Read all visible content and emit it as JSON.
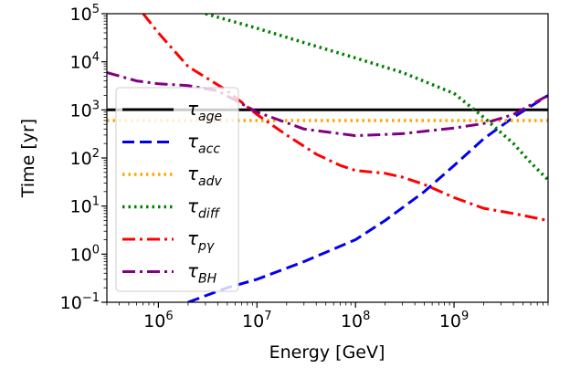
{
  "chart_data": {
    "type": "line",
    "xlabel": "Energy [GeV]",
    "ylabel": "Time [yr]",
    "xscale": "log",
    "yscale": "log",
    "xlim": [
      300000,
      9000000000
    ],
    "ylim": [
      0.1,
      100000
    ],
    "x_ticks": [
      {
        "value": 1000000,
        "base": "10",
        "exp": "6"
      },
      {
        "value": 10000000,
        "base": "10",
        "exp": "7"
      },
      {
        "value": 100000000,
        "base": "10",
        "exp": "8"
      },
      {
        "value": 1000000000,
        "base": "10",
        "exp": "9"
      }
    ],
    "y_ticks": [
      {
        "value": 0.1,
        "base": "10",
        "exp": "−1"
      },
      {
        "value": 1,
        "base": "10",
        "exp": "0"
      },
      {
        "value": 10,
        "base": "10",
        "exp": "1"
      },
      {
        "value": 100,
        "base": "10",
        "exp": "2"
      },
      {
        "value": 1000,
        "base": "10",
        "exp": "3"
      },
      {
        "value": 10000,
        "base": "10",
        "exp": "4"
      },
      {
        "value": 100000,
        "base": "10",
        "exp": "5"
      }
    ],
    "grid": false,
    "legend_position": "left",
    "series": [
      {
        "key": "age",
        "symbol": "τ",
        "subscript": "age",
        "color": "#000000",
        "style": "solid",
        "x": [
          300000,
          9000000000
        ],
        "y": [
          1000,
          1000
        ]
      },
      {
        "key": "acc",
        "symbol": "τ",
        "subscript": "acc",
        "color": "#0000ee",
        "style": "dashed",
        "x": [
          2000000,
          5000000,
          10000000,
          30000000,
          100000000,
          200000000,
          500000000,
          1000000000,
          2000000000,
          4000000000,
          9000000000
        ],
        "y": [
          0.1,
          0.2,
          0.3,
          0.7,
          2,
          5,
          20,
          70,
          250,
          700,
          2000
        ]
      },
      {
        "key": "adv",
        "symbol": "τ",
        "subscript": "adv",
        "color": "#ffa500",
        "style": "dotted",
        "x": [
          300000,
          9000000000
        ],
        "y": [
          600,
          600
        ]
      },
      {
        "key": "diff",
        "symbol": "τ",
        "subscript": "diff",
        "color": "#008000",
        "style": "dotted",
        "x": [
          3000000,
          10000000,
          30000000,
          100000000,
          300000000,
          1000000000,
          2000000000,
          4000000000,
          6000000000,
          9000000000
        ],
        "y": [
          100000,
          50000,
          25000,
          12000,
          6000,
          2200,
          700,
          200,
          80,
          35
        ]
      },
      {
        "key": "pg",
        "symbol": "τ",
        "subscript": "pγ",
        "color": "#ff0000",
        "style": "dashdot",
        "x": [
          700000,
          1000000,
          2000000,
          5000000,
          10000000,
          20000000,
          40000000,
          70000000,
          100000000,
          200000000,
          300000000,
          500000000,
          1000000000,
          2000000000,
          4000000000,
          9000000000
        ],
        "y": [
          100000,
          40000,
          8000,
          2500,
          800,
          300,
          120,
          70,
          55,
          48,
          40,
          28,
          15,
          9,
          7,
          5
        ]
      },
      {
        "key": "bh",
        "symbol": "τ",
        "subscript": "BH",
        "color": "#800080",
        "style": "dashdot",
        "x": [
          300000,
          600000,
          1000000,
          2000000,
          4000000,
          10000000,
          30000000,
          100000000,
          300000000,
          1000000000,
          2000000000,
          4000000000,
          9000000000
        ],
        "y": [
          6000,
          4000,
          3500,
          3200,
          2500,
          900,
          400,
          290,
          320,
          420,
          520,
          800,
          2000
        ]
      }
    ]
  }
}
